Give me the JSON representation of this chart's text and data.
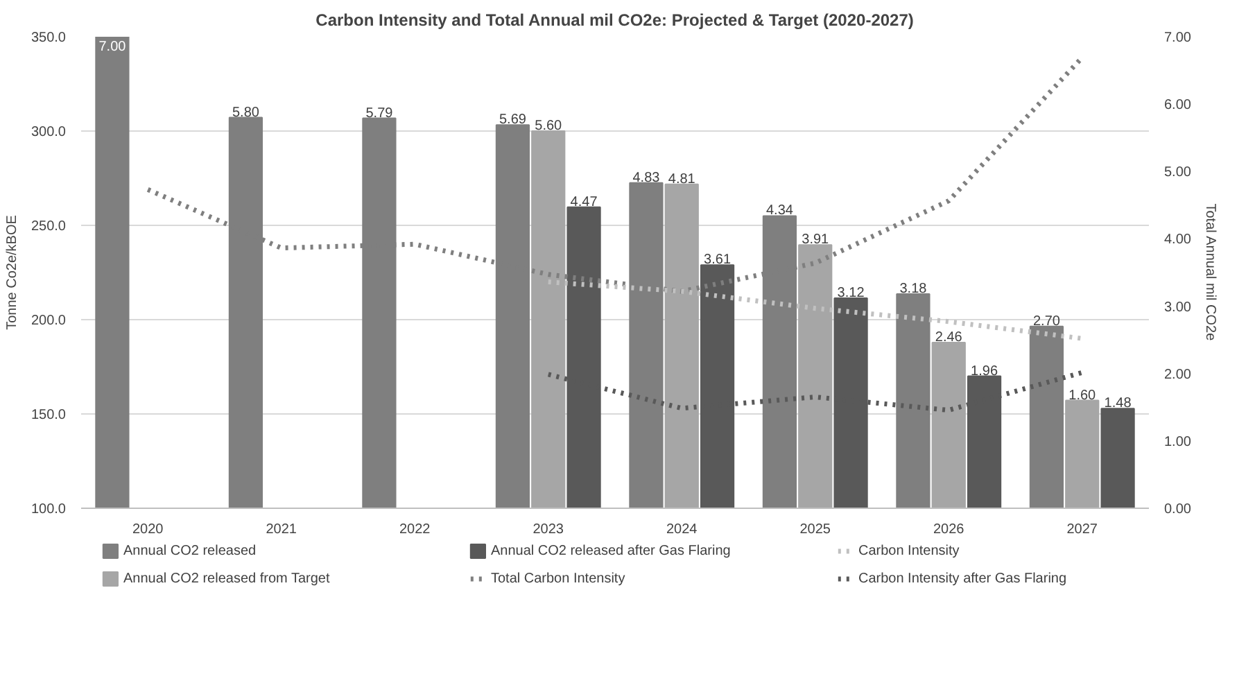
{
  "chart_data": {
    "type": "bar",
    "title": "Carbon Intensity and Total Annual mil CO2e: Projected & Target (2020-2027)",
    "ylabel": "Tonne Co2e/kBOE",
    "y2label": "Total Annual mil CO2e",
    "categories": [
      "2020",
      "2021",
      "2022",
      "2023",
      "2024",
      "2025",
      "2026",
      "2027"
    ],
    "ylim": [
      100,
      350
    ],
    "yticks": [
      {
        "value": 100,
        "label": "100.0"
      },
      {
        "value": 150,
        "label": "150.0"
      },
      {
        "value": 200,
        "label": "200.0"
      },
      {
        "value": 250,
        "label": "250.0"
      },
      {
        "value": 300,
        "label": "300.0"
      },
      {
        "value": 350,
        "label": "350.0"
      }
    ],
    "y2lim": [
      0,
      7
    ],
    "y2ticks": [
      {
        "value": 0,
        "label": "0.00"
      },
      {
        "value": 1,
        "label": "1.00"
      },
      {
        "value": 2,
        "label": "2.00"
      },
      {
        "value": 3,
        "label": "3.00"
      },
      {
        "value": 4,
        "label": "4.00"
      },
      {
        "value": 5,
        "label": "5.00"
      },
      {
        "value": 6,
        "label": "6.00"
      },
      {
        "value": 7,
        "label": "7.00"
      }
    ],
    "grid": "y",
    "legend": "bottom",
    "series": [
      {
        "name": "Annual CO2 released",
        "axis": "y2",
        "color": "#7f7f7f",
        "values": [
          7.0,
          5.8,
          5.79,
          5.69,
          4.83,
          4.34,
          3.18,
          2.7
        ],
        "value_labels": [
          "7.00",
          "5.80",
          "5.79",
          "5.69",
          "4.83",
          "4.34",
          "3.18",
          "2.70"
        ]
      },
      {
        "name": "Annual CO2 released from Target",
        "axis": "y2",
        "color": "#a6a6a6",
        "values": [
          null,
          null,
          null,
          5.6,
          4.81,
          3.91,
          2.46,
          1.6
        ],
        "value_labels": [
          null,
          null,
          null,
          "5.60",
          "4.81",
          "3.91",
          "2.46",
          "1.60"
        ]
      },
      {
        "name": "Annual CO2 released after Gas Flaring",
        "axis": "y2",
        "color": "#595959",
        "values": [
          null,
          null,
          null,
          4.47,
          3.61,
          3.12,
          1.96,
          1.48
        ],
        "value_labels": [
          null,
          null,
          null,
          "4.47",
          "3.61",
          "3.12",
          "1.96",
          "1.48"
        ]
      },
      {
        "name": "Total Carbon Intensity",
        "type": "line",
        "line_style": "dotted",
        "color": "#7f7f7f",
        "values": [
          269,
          238,
          240,
          224,
          215,
          230,
          263,
          339
        ]
      },
      {
        "name": "Carbon Intensity",
        "type": "line",
        "line_style": "dotted",
        "color": "#c0c0c0",
        "values": [
          null,
          null,
          null,
          220,
          215,
          206,
          199,
          190
        ]
      },
      {
        "name": "Carbon Intensity after Gas Flaring",
        "type": "line",
        "line_style": "dotted",
        "color": "#595959",
        "values": [
          null,
          null,
          null,
          171,
          153,
          159,
          152,
          172
        ]
      }
    ]
  }
}
